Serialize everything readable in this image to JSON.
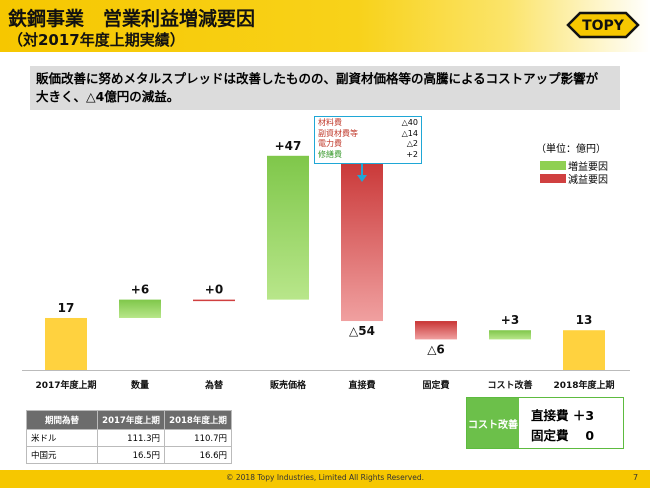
{
  "header": {
    "title_line1": "鉄鋼事業　営業利益増減要因",
    "title_line2": "（対2017年度上期実績）",
    "logo_text": "TOPY"
  },
  "summary": {
    "line1": "販価改善に努めメタルスプレッドは改善したものの、副資材価格等の高騰によるコストアップ影響が",
    "line2": "大きく、△4億円の減益。"
  },
  "legend": {
    "unit": "（単位：億円）",
    "items": [
      {
        "label": "増益要因",
        "color": "#8fd052"
      },
      {
        "label": "減益要因",
        "color": "#d04040"
      }
    ]
  },
  "callout": {
    "rows": [
      {
        "label": "材料費",
        "value": "△40"
      },
      {
        "label": "副資材費等",
        "value": "△14"
      },
      {
        "label": "電力費",
        "value": "△2"
      },
      {
        "label": "修繕費",
        "value": "+2"
      }
    ]
  },
  "chart_data": {
    "type": "bar",
    "subtype": "waterfall",
    "categories": [
      "2017年度上期",
      "数量",
      "為替",
      "販売価格",
      "直接費",
      "固定費",
      "コスト改善",
      "2018年度上期"
    ],
    "values": [
      17,
      6,
      0,
      47,
      -54,
      -6,
      3,
      13
    ],
    "bar_kind": [
      "total",
      "increase",
      "increase",
      "increase",
      "decrease",
      "decrease",
      "increase",
      "total"
    ],
    "data_labels": [
      "17",
      "+6",
      "+0",
      "+47",
      "△54",
      "△6",
      "+3",
      "13"
    ],
    "colors": {
      "total": "#ffd23f",
      "increase": "#8fd052",
      "decrease": "#d04040"
    }
  },
  "rate_table": {
    "headers": [
      "期間為替",
      "2017年度上期",
      "2018年度上期"
    ],
    "rows": [
      [
        "米ドル",
        "111.3円",
        "110.7円"
      ],
      [
        "中国元",
        "16.5円",
        "16.6円"
      ]
    ]
  },
  "cost_box": {
    "label": "コスト改善",
    "line1": "直接費 ＋3",
    "line2": "固定費　 0"
  },
  "footer": {
    "copyright": "© 2018 Topy Industries, Limited All Rights Reserved.",
    "page": "7"
  }
}
